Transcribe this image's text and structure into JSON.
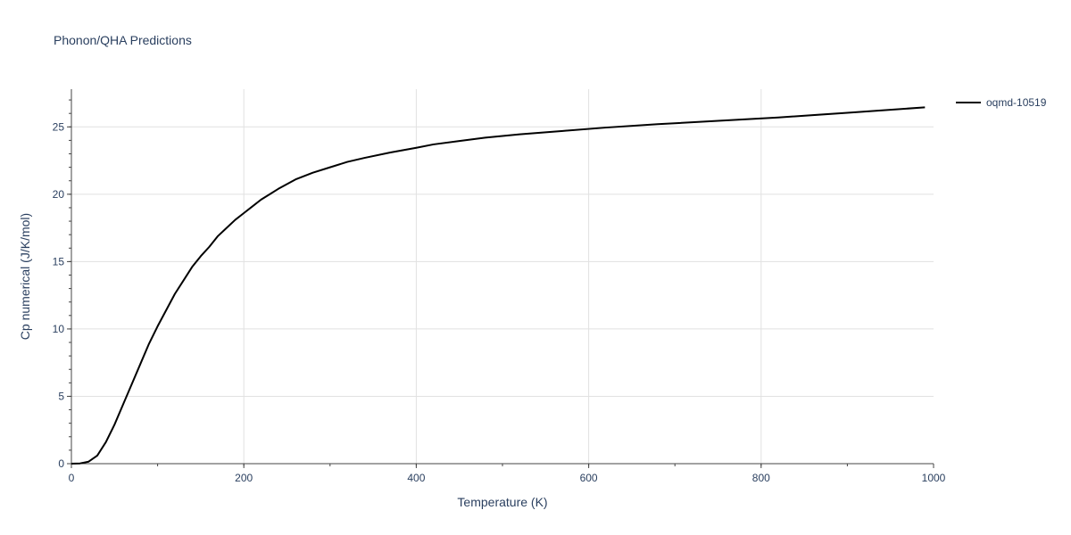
{
  "chart_data": {
    "type": "line",
    "title": "Phonon/QHA Predictions",
    "xlabel": "Temperature (K)",
    "ylabel": "Cp numerical (J/K/mol)",
    "xlim": [
      0,
      1000
    ],
    "ylim": [
      0,
      27.8
    ],
    "x_ticks": [
      0,
      200,
      400,
      600,
      800,
      1000
    ],
    "y_ticks": [
      0,
      5,
      10,
      15,
      20,
      25
    ],
    "grid": true,
    "legend_position": "top-right",
    "series": [
      {
        "name": "oqmd-10519",
        "color": "#000000",
        "x": [
          0,
          10,
          20,
          30,
          40,
          50,
          60,
          70,
          80,
          90,
          100,
          110,
          120,
          130,
          140,
          150,
          160,
          170,
          180,
          190,
          200,
          210,
          220,
          230,
          240,
          260,
          280,
          300,
          320,
          340,
          370,
          400,
          420,
          450,
          480,
          520,
          570,
          620,
          680,
          750,
          820,
          900,
          990
        ],
        "y": [
          0,
          0.02,
          0.15,
          0.6,
          1.6,
          2.9,
          4.4,
          5.9,
          7.4,
          8.9,
          10.2,
          11.4,
          12.6,
          13.6,
          14.6,
          15.4,
          16.1,
          16.9,
          17.5,
          18.1,
          18.6,
          19.1,
          19.6,
          20.0,
          20.4,
          21.1,
          21.6,
          22.0,
          22.4,
          22.7,
          23.1,
          23.45,
          23.7,
          23.95,
          24.2,
          24.45,
          24.7,
          24.95,
          25.2,
          25.45,
          25.7,
          26.05,
          26.45
        ]
      }
    ]
  }
}
